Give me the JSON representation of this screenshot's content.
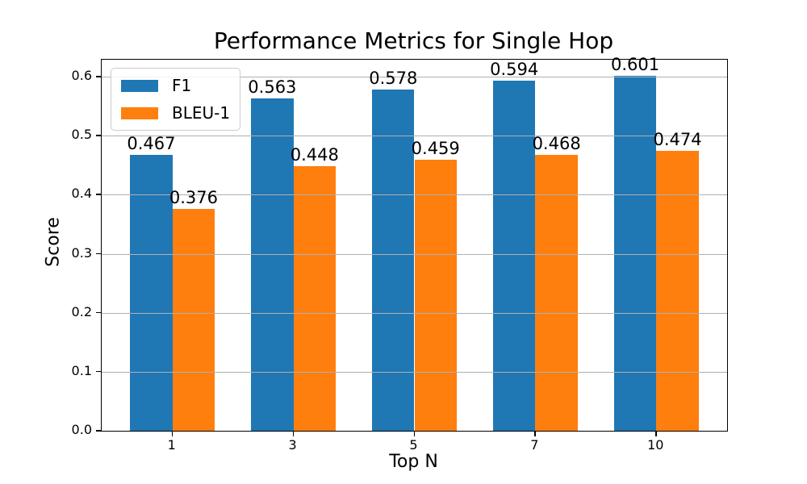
{
  "chart_data": {
    "type": "bar",
    "title": "Performance Metrics for Single Hop",
    "xlabel": "Top N",
    "ylabel": "Score",
    "categories": [
      "1",
      "3",
      "5",
      "7",
      "10"
    ],
    "series": [
      {
        "name": "F1",
        "color": "#1f77b4",
        "values": [
          0.467,
          0.563,
          0.578,
          0.594,
          0.601
        ]
      },
      {
        "name": "BLEU-1",
        "color": "#ff7f0e",
        "values": [
          0.376,
          0.448,
          0.459,
          0.468,
          0.474
        ]
      }
    ],
    "ytick_labels": [
      "0.0",
      "0.1",
      "0.2",
      "0.3",
      "0.4",
      "0.5",
      "0.6"
    ],
    "ylim": [
      0,
      0.629
    ],
    "bar_width_fraction": 0.35,
    "grid": "horizontal",
    "grid_color": "#b0b0b0",
    "value_label_decimals": 3,
    "legend_position": "upper-left"
  },
  "colors": {
    "background": "#ffffff",
    "spine": "#000000",
    "text": "#000000"
  }
}
